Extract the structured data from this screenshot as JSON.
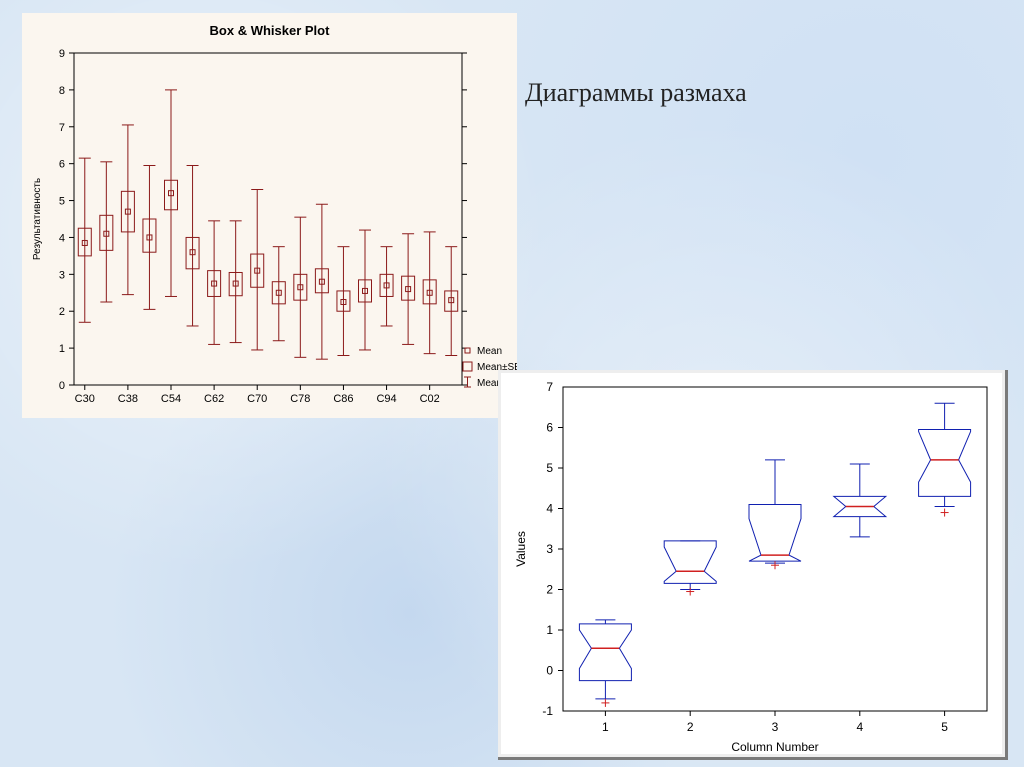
{
  "heading": "Диаграммы размаха",
  "chart1": {
    "type": "boxplot",
    "title": "Box & Whisker Plot",
    "title_fontsize": 13,
    "ylabel": "Результативность",
    "label_fontsize": 10,
    "ylim": [
      0,
      9
    ],
    "ytick_step": 1,
    "xticks": [
      "C30",
      "C38",
      "C54",
      "C62",
      "C70",
      "C78",
      "C86",
      "C94",
      "C02"
    ],
    "background_color": "#fbf6ef",
    "axis_color": "#000000",
    "box_color": "#8b1a1a",
    "series": [
      {
        "x": 0,
        "mean": 3.85,
        "q1": 3.5,
        "q3": 4.25,
        "low": 1.7,
        "high": 6.15
      },
      {
        "x": 1,
        "mean": 4.1,
        "q1": 3.65,
        "q3": 4.6,
        "low": 2.25,
        "high": 6.05
      },
      {
        "x": 2,
        "mean": 4.7,
        "q1": 4.15,
        "q3": 5.25,
        "low": 2.45,
        "high": 7.05
      },
      {
        "x": 3,
        "mean": 4.0,
        "q1": 3.6,
        "q3": 4.5,
        "low": 2.05,
        "high": 5.95
      },
      {
        "x": 4,
        "mean": 5.2,
        "q1": 4.75,
        "q3": 5.55,
        "low": 2.4,
        "high": 8.0
      },
      {
        "x": 5,
        "mean": 3.6,
        "q1": 3.15,
        "q3": 4.0,
        "low": 1.6,
        "high": 5.95
      },
      {
        "x": 6,
        "mean": 2.75,
        "q1": 2.4,
        "q3": 3.1,
        "low": 1.1,
        "high": 4.45
      },
      {
        "x": 7,
        "mean": 2.75,
        "q1": 2.42,
        "q3": 3.05,
        "low": 1.15,
        "high": 4.45
      },
      {
        "x": 8,
        "mean": 3.1,
        "q1": 2.65,
        "q3": 3.55,
        "low": 0.95,
        "high": 5.3
      },
      {
        "x": 9,
        "mean": 2.5,
        "q1": 2.2,
        "q3": 2.8,
        "low": 1.2,
        "high": 3.75
      },
      {
        "x": 10,
        "mean": 2.65,
        "q1": 2.3,
        "q3": 3.0,
        "low": 0.75,
        "high": 4.55
      },
      {
        "x": 11,
        "mean": 2.8,
        "q1": 2.5,
        "q3": 3.15,
        "low": 0.7,
        "high": 4.9
      },
      {
        "x": 12,
        "mean": 2.25,
        "q1": 2.0,
        "q3": 2.55,
        "low": 0.8,
        "high": 3.75
      },
      {
        "x": 13,
        "mean": 2.55,
        "q1": 2.25,
        "q3": 2.85,
        "low": 0.95,
        "high": 4.2
      },
      {
        "x": 14,
        "mean": 2.7,
        "q1": 2.4,
        "q3": 3.0,
        "low": 1.6,
        "high": 3.75
      },
      {
        "x": 15,
        "mean": 2.6,
        "q1": 2.3,
        "q3": 2.95,
        "low": 1.1,
        "high": 4.1
      },
      {
        "x": 16,
        "mean": 2.5,
        "q1": 2.2,
        "q3": 2.85,
        "low": 0.85,
        "high": 4.15
      },
      {
        "x": 17,
        "mean": 2.3,
        "q1": 2.0,
        "q3": 2.55,
        "low": 0.8,
        "high": 3.75
      }
    ],
    "legend": [
      {
        "marker": "point",
        "label": "Mean"
      },
      {
        "marker": "box",
        "label": "Mean±SE"
      },
      {
        "marker": "whisk",
        "label": "Mean±SD"
      }
    ]
  },
  "chart2": {
    "type": "boxplot",
    "xlabel": "Column Number",
    "ylabel": "Values",
    "label_fontsize": 12,
    "ylim": [
      -1,
      7
    ],
    "ytick_step": 1,
    "xticks": [
      "1",
      "2",
      "3",
      "4",
      "5"
    ],
    "axis_color": "#000000",
    "box_color": "#1020b0",
    "median_color": "#d02020",
    "outlier_color": "#d02020",
    "series": [
      {
        "median": 0.55,
        "q1": -0.25,
        "q3": 1.15,
        "low": -0.7,
        "high": 1.25,
        "notch_lo": 0.05,
        "notch_hi": 1.0,
        "outliers": [
          -0.8
        ]
      },
      {
        "median": 2.45,
        "q1": 2.15,
        "q3": 3.2,
        "low": 2.0,
        "high": 3.2,
        "notch_lo": 2.2,
        "notch_hi": 3.05,
        "outliers": [
          1.95
        ]
      },
      {
        "median": 2.85,
        "q1": 2.7,
        "q3": 4.1,
        "low": 2.65,
        "high": 5.2,
        "notch_lo": 2.7,
        "notch_hi": 3.75,
        "outliers": [
          2.6
        ]
      },
      {
        "median": 4.05,
        "q1": 3.8,
        "q3": 4.3,
        "low": 3.3,
        "high": 5.1,
        "notch_lo": 3.8,
        "notch_hi": 4.3,
        "outliers": []
      },
      {
        "median": 5.2,
        "q1": 4.3,
        "q3": 5.95,
        "low": 4.05,
        "high": 6.6,
        "notch_lo": 4.65,
        "notch_hi": 5.9,
        "outliers": [
          3.9
        ]
      }
    ]
  }
}
